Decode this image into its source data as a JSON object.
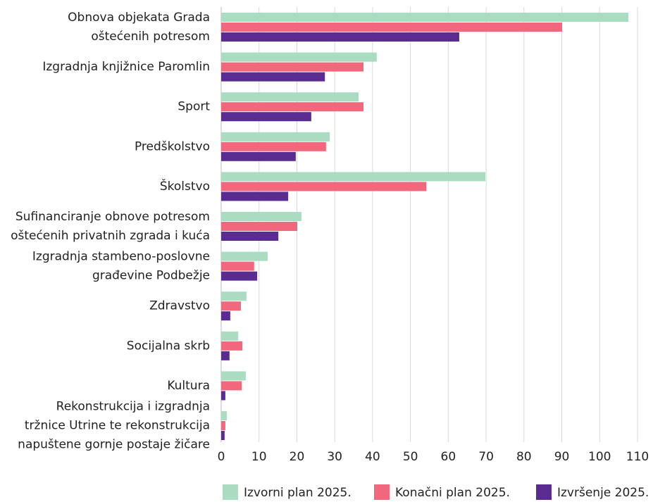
{
  "chart_data": {
    "type": "hbar",
    "categories": [
      [
        "Obnova objekata Grada",
        "oštećenih potresom"
      ],
      [
        "Izgradnja knjižnice Paromlin"
      ],
      [
        "Sport"
      ],
      [
        "Predškolstvo"
      ],
      [
        "Školstvo"
      ],
      [
        "Sufinanciranje obnove potresom",
        "oštećenih privatnih zgrada i kuća"
      ],
      [
        "Izgradnja stambeno-poslovne",
        "građevine Podbežje"
      ],
      [
        "Zdravstvo"
      ],
      [
        "Socijalna skrb"
      ],
      [
        "Kultura"
      ],
      [
        "Rekonstrukcija i izgradnja",
        "tržnice Utrine te rekonstrukcija",
        "napuštene gornje postaje žičare"
      ]
    ],
    "series": [
      {
        "name": "Izvorni plan 2025.",
        "color": "#a9dcc1",
        "values": [
          107.6,
          41.1,
          36.3,
          28.7,
          69.8,
          21.2,
          12.3,
          6.7,
          4.5,
          6.5,
          1.5
        ]
      },
      {
        "name": "Konačni plan 2025.",
        "color": "#f1677b",
        "values": [
          90.1,
          37.6,
          37.6,
          27.7,
          54.2,
          20.1,
          8.7,
          5.2,
          5.6,
          5.4,
          1.1
        ]
      },
      {
        "name": "Izvršenje 2025.",
        "color": "#5b2c8f",
        "values": [
          62.9,
          27.4,
          23.8,
          19.7,
          17.7,
          15.1,
          9.5,
          2.4,
          2.2,
          1.1,
          0.9
        ]
      }
    ],
    "xlim": [
      0,
      110
    ],
    "xticks": [
      0,
      10,
      20,
      30,
      40,
      50,
      60,
      70,
      80,
      90,
      100,
      110
    ],
    "grid": true,
    "legend": "bottom"
  }
}
